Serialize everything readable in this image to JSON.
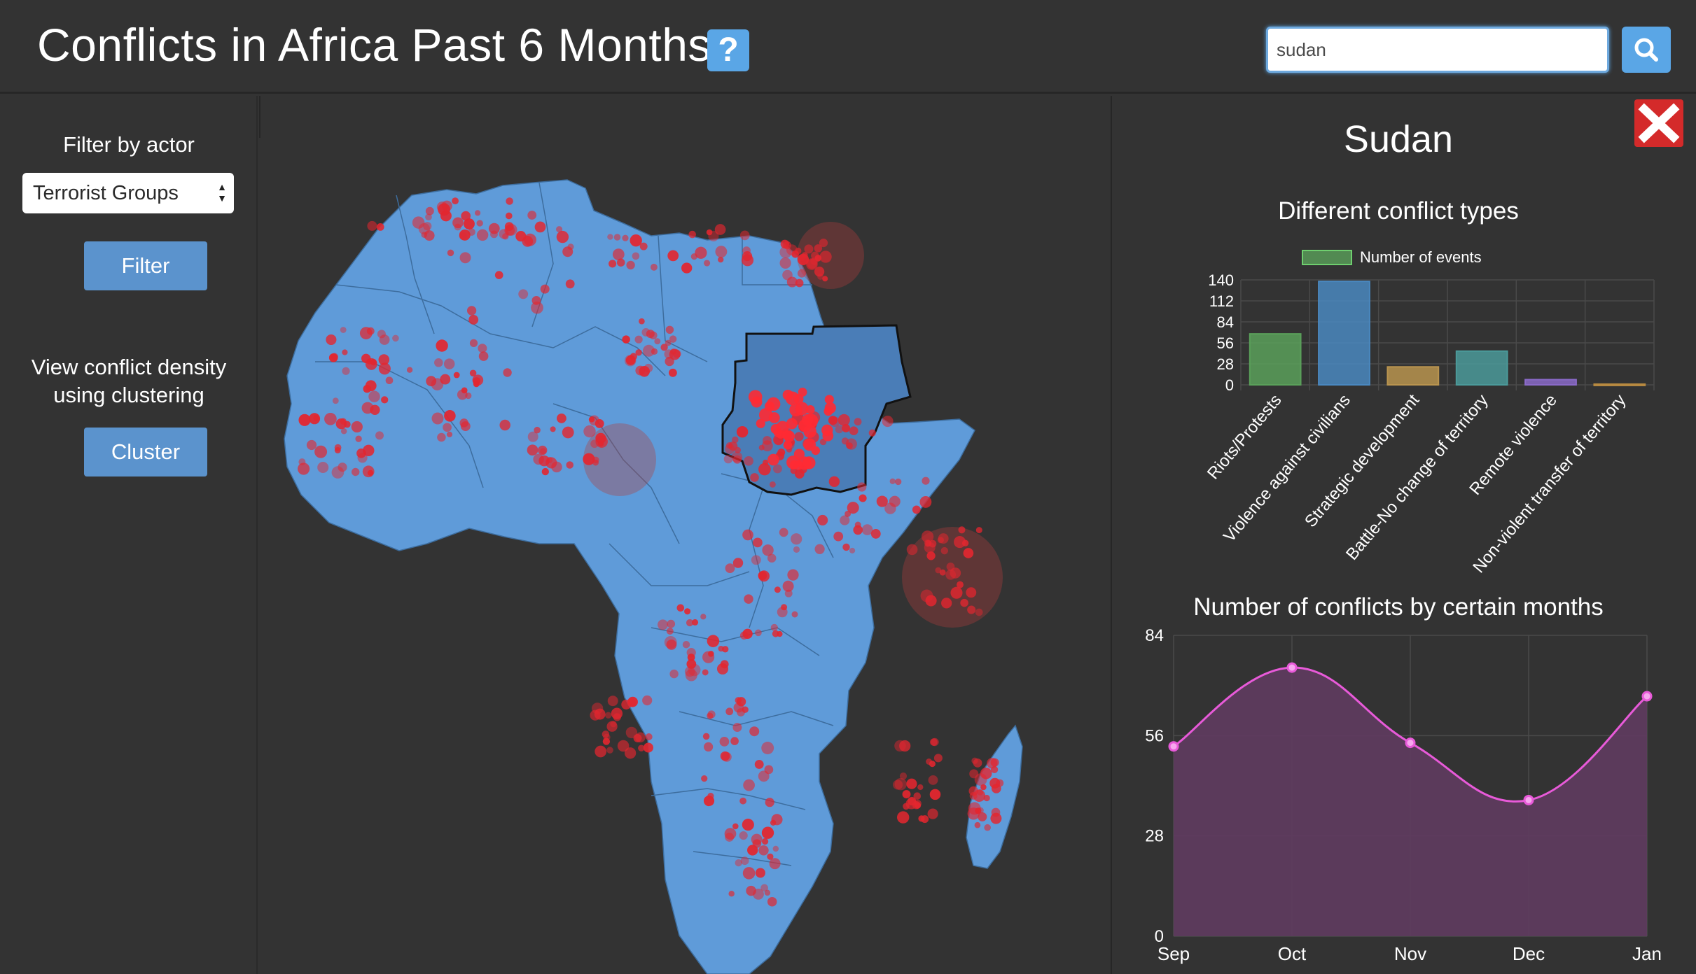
{
  "header": {
    "title": "Conflicts in Africa Past 6 Months",
    "help_label": "?",
    "search_value": "sudan"
  },
  "sidebar": {
    "filter_label": "Filter by actor",
    "actor_select_value": "Terrorist Groups",
    "filter_button": "Filter",
    "cluster_text_line1": "View conflict density",
    "cluster_text_line2": "using clustering",
    "cluster_button": "Cluster"
  },
  "colors": {
    "background": "#333333",
    "land": "#5f9bd9",
    "selected_country": "#4a7db7",
    "event_dot": "#e3262f",
    "accent_button": "#5aa6e6",
    "close_button": "#d42a2a"
  },
  "panel": {
    "country": "Sudan",
    "close_icon": "close-x-icon"
  },
  "chart_data": [
    {
      "type": "bar",
      "title": "Different conflict types",
      "legend": "Number of events",
      "categories": [
        "Riots/Protests",
        "Violence against civilians",
        "Strategic development",
        "Battle-No change of territory",
        "Remote violence",
        "Non-violent transfer of territory"
      ],
      "values": [
        68,
        138,
        24,
        45,
        7,
        1
      ],
      "colors": [
        "#5aa05a",
        "#4a88c0",
        "#b9944f",
        "#4b9a9a",
        "#8a6ac8",
        "#b88a40"
      ],
      "yticks": [
        0,
        28,
        56,
        84,
        112,
        140
      ],
      "ylim": [
        0,
        140
      ],
      "grid": true
    },
    {
      "type": "area",
      "title": "Number of conflicts by certain months",
      "categories": [
        "Sep",
        "Oct",
        "Nov",
        "Dec",
        "Jan"
      ],
      "values": [
        53,
        75,
        54,
        38,
        67
      ],
      "yticks": [
        0,
        28,
        56,
        84
      ],
      "ylim": [
        0,
        84
      ],
      "line_color": "#e85ad9",
      "fill_color": "#5e3b5e",
      "grid": true
    }
  ]
}
